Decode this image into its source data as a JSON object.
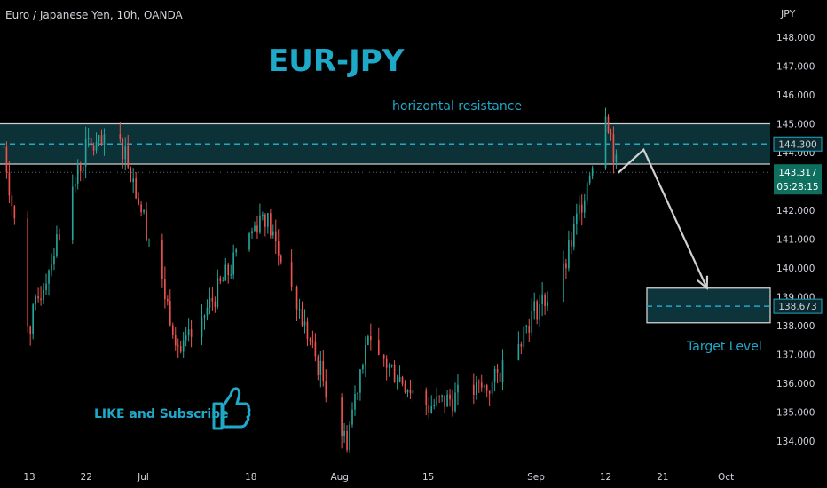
{
  "symbol_title": "Euro / Japanese Yen, 10h, OANDA",
  "currency_label": "JPY",
  "headline": "EUR-JPY",
  "annotations": {
    "resistance_label": "horizontal resistance",
    "target_label": "Target Level",
    "cta_label": "LIKE and Subscribe"
  },
  "colors": {
    "background": "#000000",
    "up_candle": "#26a69a",
    "down_candle": "#ef5350",
    "accent": "#1fa9c9",
    "zone_fill": "#0e3a40",
    "zone_border": "#d0d0d0",
    "axis_text": "#d1d4dc",
    "arrow": "#d0d0d0"
  },
  "chart_data": {
    "type": "candlestick",
    "title": "EUR-JPY",
    "xlabel": "",
    "ylabel": "JPY",
    "ylim": [
      133.6,
      149.0
    ],
    "y_ticks": [
      "148.000",
      "147.000",
      "146.000",
      "145.000",
      "144.000",
      "143.000",
      "142.000",
      "141.000",
      "140.000",
      "139.000",
      "138.000",
      "137.000",
      "136.000",
      "135.000",
      "134.000"
    ],
    "x_ticks": [
      "13",
      "22",
      "Jul",
      "18",
      "Aug",
      "15",
      "Sep",
      "12",
      "21",
      "Oct"
    ],
    "price_labels": {
      "resistance_level": "144.300",
      "last_price": "143.317",
      "countdown": "05:28:15",
      "target_level": "138.673"
    },
    "resistance_zone": {
      "top": 145.0,
      "bottom": 143.6,
      "level": 144.3
    },
    "target_zone": {
      "top": 139.3,
      "bottom": 138.1,
      "level": 138.673
    },
    "projection_path": [
      {
        "x": "Sep 14",
        "y": 143.3
      },
      {
        "x": "Sep 18",
        "y": 144.1
      },
      {
        "x": "Sep 28",
        "y": 139.3
      }
    ],
    "key_points": [
      {
        "x": "Jun 09",
        "y": 144.2
      },
      {
        "x": "Jun 13",
        "y": 137.9
      },
      {
        "x": "Jun 22",
        "y": 144.2
      },
      {
        "x": "Jun 28",
        "y": 144.2
      },
      {
        "x": "Jul 07",
        "y": 137.0
      },
      {
        "x": "Jul 20",
        "y": 142.0
      },
      {
        "x": "Aug 02",
        "y": 133.9
      },
      {
        "x": "Aug 05",
        "y": 137.4
      },
      {
        "x": "Aug 15",
        "y": 135.2
      },
      {
        "x": "Aug 25",
        "y": 135.9
      },
      {
        "x": "Sep 01",
        "y": 138.6
      },
      {
        "x": "Sep 05",
        "y": 139.5
      },
      {
        "x": "Sep 12",
        "y": 145.6
      },
      {
        "x": "Sep 14",
        "y": 143.1
      }
    ]
  }
}
